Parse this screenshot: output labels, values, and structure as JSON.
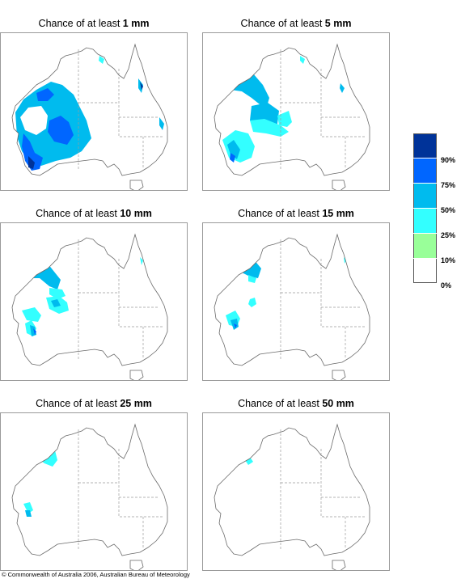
{
  "panels": [
    {
      "title_prefix": "Chance of at least",
      "amount": "1 mm",
      "level": 0
    },
    {
      "title_prefix": "Chance of at least",
      "amount": "5 mm",
      "level": 1
    },
    {
      "title_prefix": "Chance of at least",
      "amount": "10 mm",
      "level": 2
    },
    {
      "title_prefix": "Chance of at least",
      "amount": "15 mm",
      "level": 3
    },
    {
      "title_prefix": "Chance of at least",
      "amount": "25 mm",
      "level": 4
    },
    {
      "title_prefix": "Chance of at least",
      "amount": "50 mm",
      "level": 5
    }
  ],
  "legend": {
    "labels": [
      "90%",
      "75%",
      "50%",
      "25%",
      "10%",
      "0%"
    ],
    "colors": [
      "#003399",
      "#0066ff",
      "#00bbee",
      "#33ffff",
      "#99ff99",
      "#ffffff"
    ]
  },
  "copyright": "© Commonwealth of Australia 2006, Australian Bureau of Meteorology"
}
